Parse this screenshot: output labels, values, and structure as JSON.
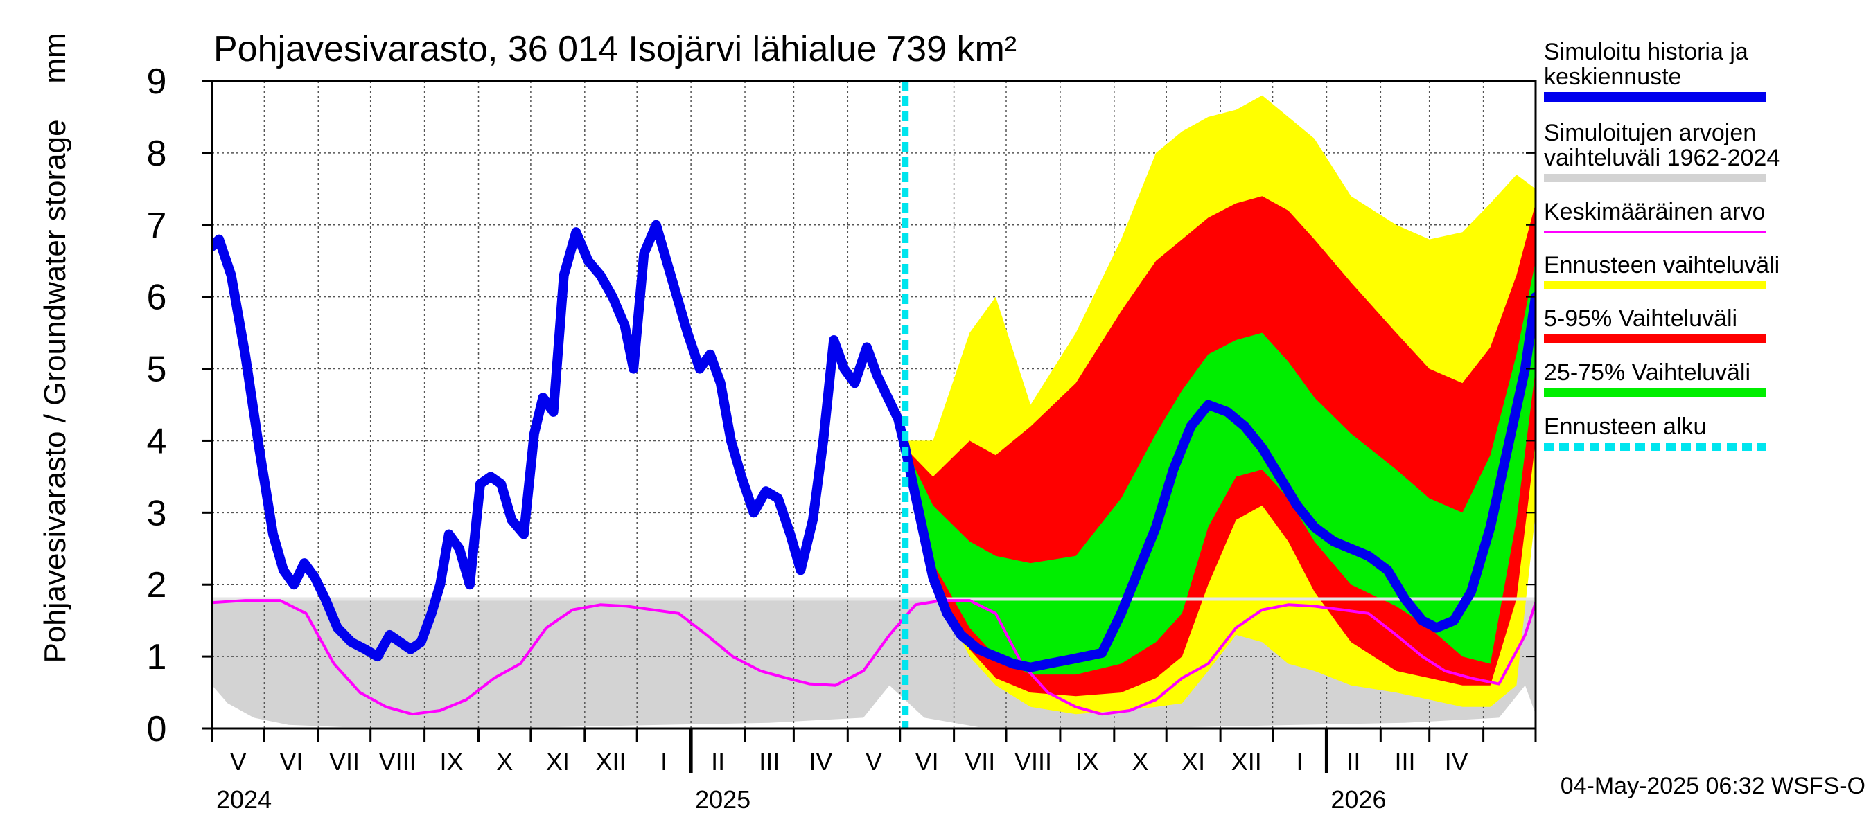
{
  "chart_data": {
    "type": "area",
    "title": "Pohjavesivarasto, 36 014 Isojärvi lähialue 739 km²",
    "ylabel": "Pohjavesivarasto / Groundwater storage",
    "yunit": "mm",
    "ylim": [
      0,
      9
    ],
    "yticks": [
      0,
      1,
      2,
      3,
      4,
      5,
      6,
      7,
      8,
      9
    ],
    "xlim": [
      "2024-04-01",
      "2026-05-01"
    ],
    "grid": true,
    "legend_position": "right",
    "footer": "04-May-2025 06:32 WSFS-O",
    "month_labels": [
      "V",
      "VI",
      "VII",
      "VIII",
      "IX",
      "X",
      "XI",
      "XII",
      "I",
      "II",
      "III",
      "IV",
      "V",
      "VI",
      "VII",
      "VIII",
      "IX",
      "X",
      "XI",
      "XII",
      "I",
      "II",
      "III",
      "IV"
    ],
    "year_labels": [
      {
        "label": "2024",
        "date": "2024-04-01"
      },
      {
        "label": "2025",
        "date": "2025-01-01"
      },
      {
        "label": "2026",
        "date": "2026-01-01"
      }
    ],
    "forecast_start": "2025-05-04",
    "colors": {
      "history": "#0000ee",
      "sim_range": "#d3d3d3",
      "mean": "#ff00ff",
      "forecast_range": "#ffff00",
      "p5_95": "#ff0000",
      "p25_75": "#00ee00",
      "forecast_start": "#00e5ee",
      "reference_line": "#e6e6e6"
    },
    "legend": [
      {
        "label": "Simuloitu historia ja keskiennuste",
        "key": "history"
      },
      {
        "label": "Simuloitujen arvojen vaihteluväli 1962-2024",
        "key": "sim_range"
      },
      {
        "label": "Keskimääräinen arvo",
        "key": "mean"
      },
      {
        "label": "Ennusteen vaihteluväli",
        "key": "forecast_range"
      },
      {
        "label": "5-95% Vaihteluväli",
        "key": "p5_95"
      },
      {
        "label": "25-75% Vaihteluväli",
        "key": "p25_75"
      },
      {
        "label": "Ennusteen alku",
        "key": "forecast_start"
      }
    ],
    "reference_level": 1.8,
    "series": [
      {
        "name": "Simuloitu historia ja keskiennuste",
        "x": [
          "2024-04-01",
          "2024-04-05",
          "2024-04-12",
          "2024-04-20",
          "2024-04-28",
          "2024-05-06",
          "2024-05-12",
          "2024-05-18",
          "2024-05-24",
          "2024-05-30",
          "2024-06-05",
          "2024-06-12",
          "2024-06-20",
          "2024-06-28",
          "2024-07-05",
          "2024-07-12",
          "2024-07-18",
          "2024-07-24",
          "2024-07-30",
          "2024-08-05",
          "2024-08-10",
          "2024-08-15",
          "2024-08-21",
          "2024-08-27",
          "2024-09-02",
          "2024-09-08",
          "2024-09-14",
          "2024-09-20",
          "2024-09-27",
          "2024-10-03",
          "2024-10-08",
          "2024-10-14",
          "2024-10-20",
          "2024-10-27",
          "2024-11-03",
          "2024-11-10",
          "2024-11-17",
          "2024-11-24",
          "2024-11-29",
          "2024-12-05",
          "2024-12-12",
          "2024-12-18",
          "2024-12-24",
          "2024-12-30",
          "2025-01-06",
          "2025-01-12",
          "2025-01-18",
          "2025-01-24",
          "2025-01-30",
          "2025-02-06",
          "2025-02-13",
          "2025-02-20",
          "2025-02-27",
          "2025-03-05",
          "2025-03-12",
          "2025-03-18",
          "2025-03-24",
          "2025-03-30",
          "2025-04-05",
          "2025-04-12",
          "2025-04-18",
          "2025-04-24",
          "2025-04-30",
          "2025-05-04",
          "2025-05-12",
          "2025-05-20",
          "2025-05-28",
          "2025-06-05",
          "2025-06-15",
          "2025-06-25",
          "2025-07-05",
          "2025-07-15",
          "2025-07-25",
          "2025-08-05",
          "2025-08-15",
          "2025-08-25",
          "2025-09-05",
          "2025-09-15",
          "2025-09-25",
          "2025-10-05",
          "2025-10-15",
          "2025-10-25",
          "2025-11-05",
          "2025-11-15",
          "2025-11-25",
          "2025-12-05",
          "2025-12-15",
          "2025-12-25",
          "2026-01-05",
          "2026-01-15",
          "2026-01-25",
          "2026-02-05",
          "2026-02-15",
          "2026-02-25",
          "2026-03-05",
          "2026-03-15",
          "2026-03-25",
          "2026-04-05",
          "2026-04-15",
          "2026-04-25",
          "2026-05-01"
        ],
        "y": [
          6.7,
          6.8,
          6.3,
          5.2,
          3.9,
          2.7,
          2.2,
          2.0,
          2.3,
          2.1,
          1.8,
          1.4,
          1.2,
          1.1,
          1.0,
          1.3,
          1.2,
          1.1,
          1.2,
          1.6,
          2.0,
          2.7,
          2.5,
          2.0,
          3.4,
          3.5,
          3.4,
          2.9,
          2.7,
          4.1,
          4.6,
          4.4,
          6.3,
          6.9,
          6.5,
          6.3,
          6.0,
          5.6,
          5.0,
          6.6,
          7.0,
          6.5,
          6.0,
          5.5,
          5.0,
          5.2,
          4.8,
          4.0,
          3.5,
          3.0,
          3.3,
          3.2,
          2.7,
          2.2,
          2.9,
          4.0,
          5.4,
          5.0,
          4.8,
          5.3,
          4.9,
          4.6,
          4.3,
          3.9,
          3.0,
          2.1,
          1.6,
          1.3,
          1.1,
          1.0,
          0.9,
          0.85,
          0.9,
          0.95,
          1.0,
          1.05,
          1.6,
          2.2,
          2.8,
          3.6,
          4.2,
          4.5,
          4.4,
          4.2,
          3.9,
          3.5,
          3.1,
          2.8,
          2.6,
          2.5,
          2.4,
          2.2,
          1.8,
          1.5,
          1.4,
          1.5,
          1.9,
          2.8,
          3.9,
          5.0,
          6.0
        ]
      },
      {
        "name": "Keskimääräinen arvo",
        "x": [
          "2024-04-01",
          "2024-04-20",
          "2024-05-10",
          "2024-05-25",
          "2024-06-10",
          "2024-06-25",
          "2024-07-10",
          "2024-07-25",
          "2024-08-10",
          "2024-08-25",
          "2024-09-10",
          "2024-09-25",
          "2024-10-10",
          "2024-10-25",
          "2024-11-10",
          "2024-11-25",
          "2024-12-10",
          "2024-12-25",
          "2025-01-10",
          "2025-01-25",
          "2025-02-10",
          "2025-02-25",
          "2025-03-10",
          "2025-03-25",
          "2025-04-10",
          "2025-04-25",
          "2025-05-10",
          "2025-05-25",
          "2025-06-10",
          "2025-06-25",
          "2025-07-10",
          "2025-07-25",
          "2025-08-10",
          "2025-08-25",
          "2025-09-10",
          "2025-09-25",
          "2025-10-10",
          "2025-10-25",
          "2025-11-10",
          "2025-11-25",
          "2025-12-10",
          "2025-12-25",
          "2026-01-10",
          "2026-01-25",
          "2026-02-10",
          "2026-02-25",
          "2026-03-10",
          "2026-03-25",
          "2026-04-10",
          "2026-04-25",
          "2026-05-01"
        ],
        "y": [
          1.75,
          1.78,
          1.78,
          1.6,
          0.9,
          0.5,
          0.3,
          0.2,
          0.25,
          0.4,
          0.7,
          0.9,
          1.4,
          1.65,
          1.72,
          1.7,
          1.65,
          1.6,
          1.3,
          1.0,
          0.8,
          0.7,
          0.62,
          0.6,
          0.8,
          1.3,
          1.72,
          1.78,
          1.78,
          1.6,
          0.9,
          0.5,
          0.3,
          0.2,
          0.25,
          0.4,
          0.7,
          0.9,
          1.4,
          1.65,
          1.72,
          1.7,
          1.65,
          1.6,
          1.3,
          1.0,
          0.8,
          0.7,
          0.62,
          1.3,
          1.75
        ]
      }
    ],
    "bands": [
      {
        "name": "Simuloitujen arvojen vaihteluväli 1962-2024",
        "x": [
          "2024-04-01",
          "2024-04-10",
          "2024-04-25",
          "2024-05-15",
          "2024-06-15",
          "2024-08-15",
          "2024-10-15",
          "2024-12-15",
          "2025-02-15",
          "2025-04-10",
          "2025-04-25",
          "2025-05-15",
          "2025-06-15",
          "2025-08-15",
          "2025-10-15",
          "2025-12-15",
          "2026-02-15",
          "2026-04-10",
          "2026-04-25",
          "2026-05-01"
        ],
        "low": [
          0.6,
          0.35,
          0.15,
          0.05,
          0.02,
          0.02,
          0.02,
          0.05,
          0.08,
          0.15,
          0.6,
          0.15,
          0.02,
          0.02,
          0.02,
          0.05,
          0.08,
          0.15,
          0.6,
          0.2
        ],
        "high": [
          1.8,
          1.8,
          1.8,
          1.8,
          1.8,
          1.8,
          1.8,
          1.8,
          1.8,
          1.8,
          1.8,
          1.8,
          1.8,
          1.8,
          1.8,
          1.8,
          1.8,
          1.8,
          1.8,
          1.8
        ]
      },
      {
        "name": "Ennusteen vaihteluväli",
        "x": [
          "2025-05-04",
          "2025-05-20",
          "2025-06-10",
          "2025-06-25",
          "2025-07-15",
          "2025-08-10",
          "2025-09-05",
          "2025-09-25",
          "2025-10-10",
          "2025-10-25",
          "2025-11-10",
          "2025-11-25",
          "2025-12-10",
          "2025-12-25",
          "2026-01-15",
          "2026-02-10",
          "2026-03-01",
          "2026-03-20",
          "2026-04-05",
          "2026-04-20",
          "2026-05-01"
        ],
        "low": [
          3.7,
          2.0,
          1.0,
          0.6,
          0.3,
          0.2,
          0.25,
          0.3,
          0.35,
          0.8,
          1.3,
          1.2,
          0.9,
          0.8,
          0.6,
          0.5,
          0.4,
          0.3,
          0.3,
          0.6,
          3.0
        ],
        "high": [
          4.0,
          4.0,
          5.5,
          6.0,
          4.5,
          5.5,
          6.8,
          8.0,
          8.3,
          8.5,
          8.6,
          8.8,
          8.5,
          8.2,
          7.4,
          7.0,
          6.8,
          6.9,
          7.3,
          7.7,
          7.5
        ]
      },
      {
        "name": "5-95% Vaihteluväli",
        "x": [
          "2025-05-04",
          "2025-05-20",
          "2025-06-10",
          "2025-06-25",
          "2025-07-15",
          "2025-08-10",
          "2025-09-05",
          "2025-09-25",
          "2025-10-10",
          "2025-10-25",
          "2025-11-10",
          "2025-11-25",
          "2025-12-10",
          "2025-12-25",
          "2026-01-15",
          "2026-02-10",
          "2026-03-01",
          "2026-03-20",
          "2026-04-05",
          "2026-04-20",
          "2026-05-01"
        ],
        "low": [
          3.6,
          2.0,
          1.1,
          0.7,
          0.5,
          0.45,
          0.5,
          0.7,
          1.0,
          2.0,
          2.9,
          3.1,
          2.6,
          1.9,
          1.2,
          0.8,
          0.7,
          0.6,
          0.6,
          1.8,
          4.0
        ],
        "high": [
          3.9,
          3.5,
          4.0,
          3.8,
          4.2,
          4.8,
          5.8,
          6.5,
          6.8,
          7.1,
          7.3,
          7.4,
          7.2,
          6.8,
          6.2,
          5.5,
          5.0,
          4.8,
          5.3,
          6.3,
          7.3
        ]
      },
      {
        "name": "25-75% Vaihteluväli",
        "x": [
          "2025-05-04",
          "2025-05-20",
          "2025-06-10",
          "2025-06-25",
          "2025-07-15",
          "2025-08-10",
          "2025-09-05",
          "2025-09-25",
          "2025-10-10",
          "2025-10-25",
          "2025-11-10",
          "2025-11-25",
          "2025-12-10",
          "2025-12-25",
          "2026-01-15",
          "2026-02-10",
          "2026-03-01",
          "2026-03-20",
          "2026-04-05",
          "2026-04-20",
          "2026-05-01"
        ],
        "low": [
          3.7,
          2.3,
          1.4,
          1.0,
          0.75,
          0.75,
          0.9,
          1.2,
          1.6,
          2.8,
          3.5,
          3.6,
          3.2,
          2.6,
          2.0,
          1.7,
          1.4,
          1.0,
          0.9,
          2.9,
          5.0
        ],
        "high": [
          3.9,
          3.1,
          2.6,
          2.4,
          2.3,
          2.4,
          3.2,
          4.1,
          4.7,
          5.2,
          5.4,
          5.5,
          5.1,
          4.6,
          4.1,
          3.6,
          3.2,
          3.0,
          3.8,
          5.2,
          6.5
        ]
      }
    ]
  }
}
